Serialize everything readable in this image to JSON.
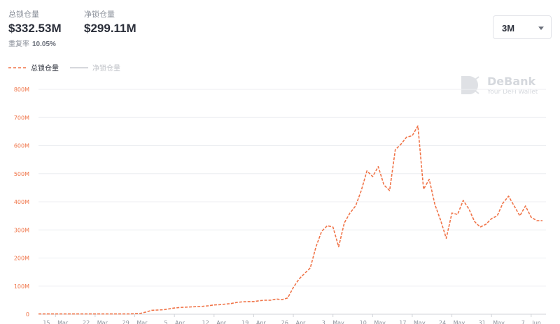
{
  "header": {
    "stats": [
      {
        "label": "总锁仓量",
        "value": "$332.53M"
      },
      {
        "label": "净锁仓量",
        "value": "$299.11M"
      }
    ],
    "repeat": {
      "label": "重复率",
      "value": "10.05%"
    },
    "range": "3M",
    "watermark": {
      "title": "DeBank",
      "subtitle": "Your DeFi Wallet"
    }
  },
  "chart_data": {
    "type": "line",
    "x": [
      "12 Mar",
      "13 Mar",
      "14 Mar",
      "15 Mar",
      "16 Mar",
      "17 Mar",
      "18 Mar",
      "19 Mar",
      "20 Mar",
      "21 Mar",
      "22 Mar",
      "23 Mar",
      "24 Mar",
      "25 Mar",
      "26 Mar",
      "27 Mar",
      "28 Mar",
      "29 Mar",
      "30 Mar",
      "31 Mar",
      "1 Apr",
      "2 Apr",
      "3 Apr",
      "4 Apr",
      "5 Apr",
      "6 Apr",
      "7 Apr",
      "8 Apr",
      "9 Apr",
      "10 Apr",
      "11 Apr",
      "12 Apr",
      "13 Apr",
      "14 Apr",
      "15 Apr",
      "16 Apr",
      "17 Apr",
      "18 Apr",
      "19 Apr",
      "20 Apr",
      "21 Apr",
      "22 Apr",
      "23 Apr",
      "24 Apr",
      "25 Apr",
      "26 Apr",
      "27 Apr",
      "28 Apr",
      "29 Apr",
      "30 Apr",
      "1 May",
      "2 May",
      "3 May",
      "4 May",
      "5 May",
      "6 May",
      "7 May",
      "8 May",
      "9 May",
      "10 May",
      "11 May",
      "12 May",
      "13 May",
      "14 May",
      "15 May",
      "16 May",
      "17 May",
      "18 May",
      "19 May",
      "20 May",
      "21 May",
      "22 May",
      "23 May",
      "24 May",
      "25 May",
      "26 May",
      "27 May",
      "28 May",
      "29 May",
      "30 May",
      "31 May",
      "1 Jun",
      "2 Jun",
      "3 Jun",
      "4 Jun",
      "5 Jun",
      "6 Jun",
      "7 Jun",
      "8 Jun",
      "9 Jun"
    ],
    "xticks": [
      "15 Mar",
      "22 Mar",
      "29 Mar",
      "5 Apr",
      "12 Apr",
      "19 Apr",
      "26 Apr",
      "3 May",
      "10 May",
      "17 May",
      "24 May",
      "31 May",
      "7 Jun"
    ],
    "series": [
      {
        "name": "总锁仓量",
        "color": "#f07448",
        "dashed": true,
        "values": [
          1,
          1,
          1,
          1,
          1,
          1,
          1,
          1,
          1,
          1,
          1,
          1,
          1,
          1,
          1,
          1,
          1,
          2,
          3,
          8,
          14,
          15,
          16,
          19,
          22,
          24,
          25,
          26,
          27,
          28,
          30,
          33,
          34,
          36,
          38,
          42,
          44,
          45,
          45,
          48,
          50,
          50,
          54,
          52,
          58,
          95,
          125,
          145,
          165,
          240,
          295,
          315,
          310,
          240,
          325,
          360,
          385,
          440,
          510,
          490,
          525,
          460,
          440,
          585,
          605,
          630,
          635,
          670,
          445,
          480,
          390,
          335,
          270,
          360,
          355,
          405,
          375,
          330,
          310,
          320,
          340,
          350,
          395,
          420,
          385,
          350,
          385,
          345,
          333,
          333
        ]
      },
      {
        "name": "净锁仓量",
        "color": "#c8cbd0",
        "hidden": true
      }
    ],
    "ylim": [
      0,
      800
    ],
    "yticks": [
      0,
      {
        "value": 100,
        "label": "100M"
      },
      {
        "value": 200,
        "label": "200M"
      },
      {
        "value": 300,
        "label": "300M"
      },
      {
        "value": 400,
        "label": "400M"
      },
      {
        "value": 500,
        "label": "500M"
      },
      {
        "value": 600,
        "label": "600M"
      },
      {
        "value": 700,
        "label": "700M"
      },
      {
        "value": 800,
        "label": "800M"
      }
    ],
    "grid": true
  }
}
